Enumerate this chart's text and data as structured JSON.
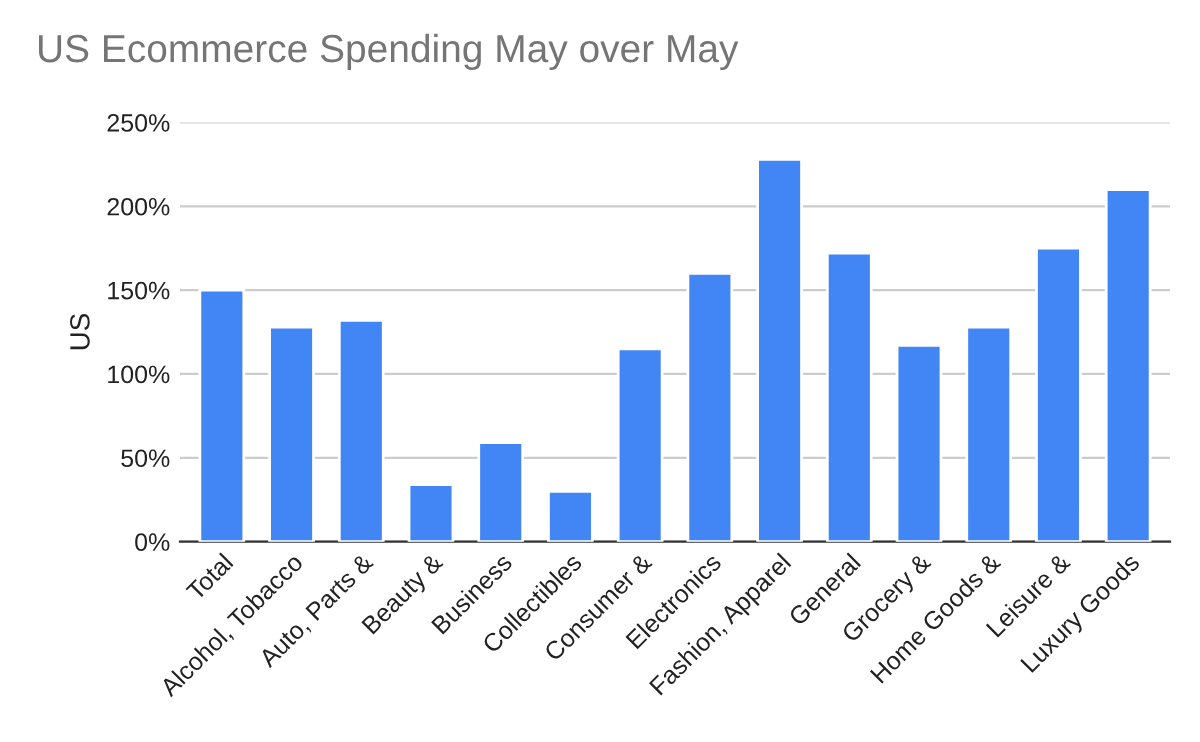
{
  "chart_data": {
    "type": "bar",
    "title": "US Ecommerce Spending May over May",
    "ylabel": "US",
    "categories": [
      "Total",
      "Alcohol, Tobacco",
      "Auto, Parts &",
      "Beauty &",
      "Business",
      "Collectibles",
      "Consumer &",
      "Electronics",
      "Fashion, Apparel",
      "General",
      "Grocery &",
      "Home Goods &",
      "Leisure &",
      "Luxury Goods"
    ],
    "values": [
      150,
      128,
      132,
      34,
      59,
      30,
      115,
      160,
      228,
      172,
      117,
      128,
      175,
      210
    ],
    "color": "#4285f4",
    "ylim": [
      0,
      250
    ],
    "yticks": [
      {
        "value": 0,
        "label": "0%"
      },
      {
        "value": 50,
        "label": "50%"
      },
      {
        "value": 100,
        "label": "100%"
      },
      {
        "value": 150,
        "label": "150%"
      },
      {
        "value": 200,
        "label": "200%"
      },
      {
        "value": 250,
        "label": "250%"
      }
    ],
    "grid": "y"
  }
}
